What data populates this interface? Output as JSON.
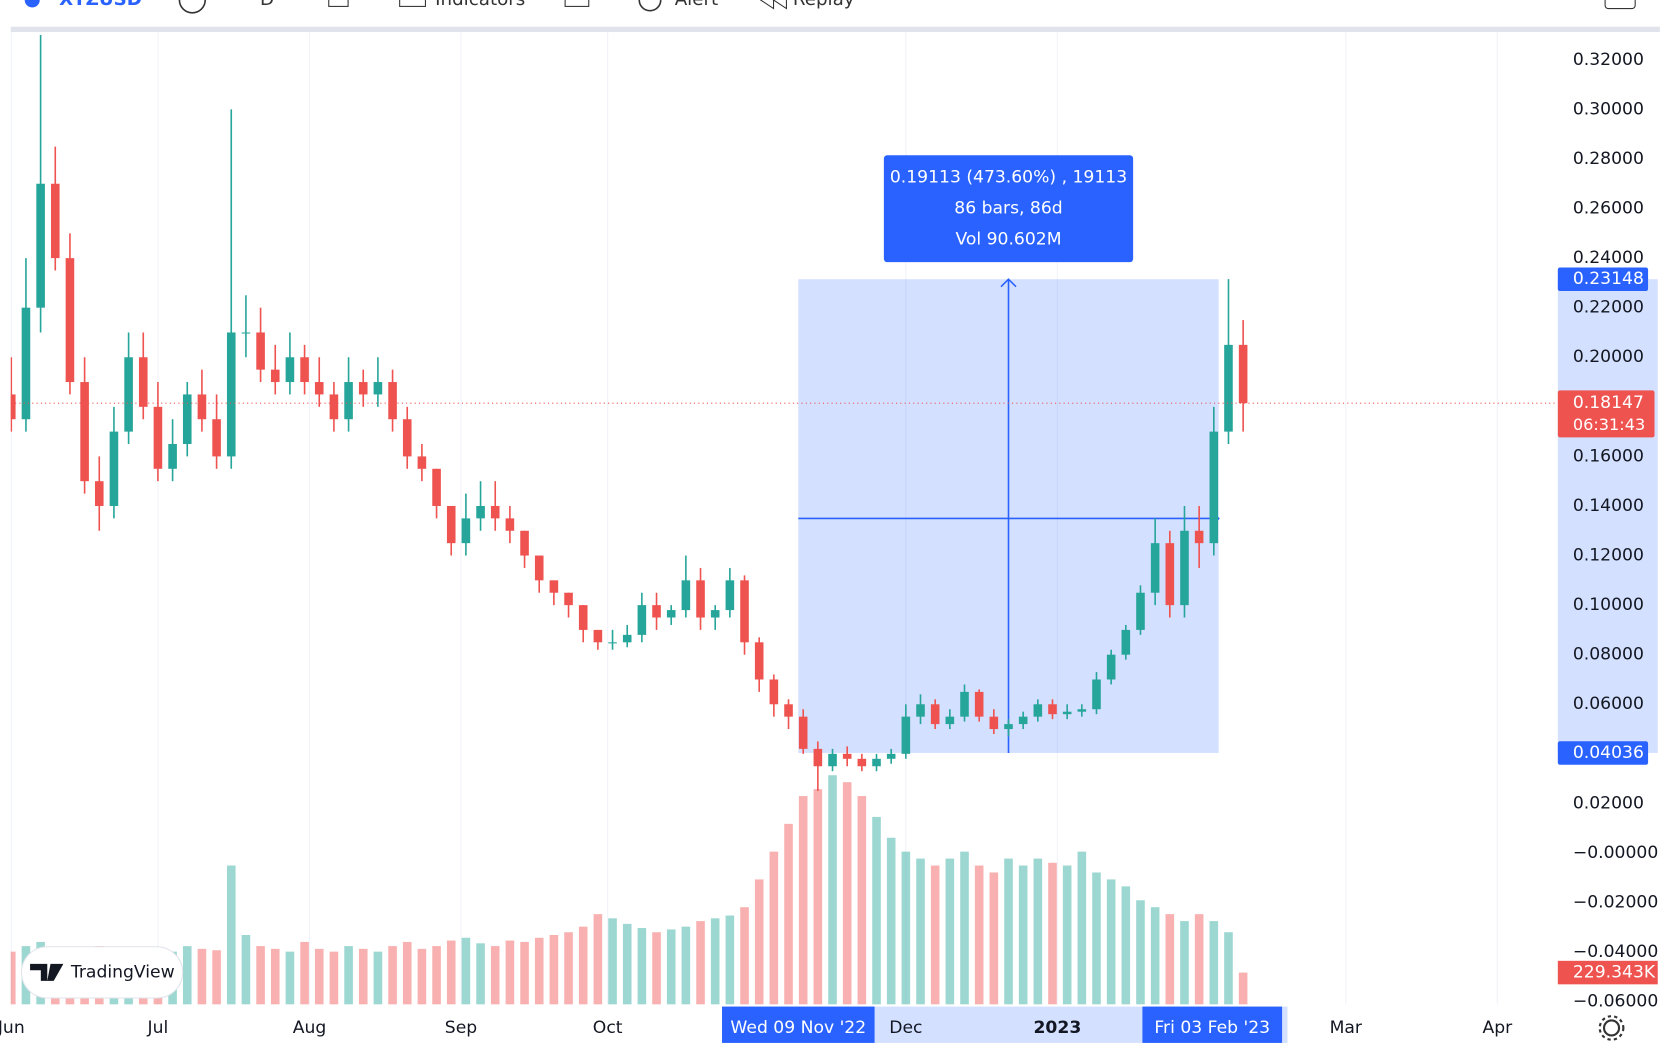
{
  "toolbar": {
    "symbol": "XTZUSD",
    "interval": "D",
    "indicators": "Indicators",
    "alert": "Alert",
    "replay": "Replay"
  },
  "branding": "TradingView",
  "chart_data": {
    "type": "candlestick",
    "x": [
      "2022-06-01",
      "2022-06-04",
      "2022-06-07",
      "2022-06-10",
      "2022-06-13",
      "2022-06-16",
      "2022-06-19",
      "2022-06-22",
      "2022-06-25",
      "2022-06-28",
      "2022-07-01",
      "2022-07-04",
      "2022-07-07",
      "2022-07-10",
      "2022-07-13",
      "2022-07-16",
      "2022-07-19",
      "2022-07-22",
      "2022-07-25",
      "2022-07-28",
      "2022-07-31",
      "2022-08-03",
      "2022-08-06",
      "2022-08-09",
      "2022-08-12",
      "2022-08-15",
      "2022-08-18",
      "2022-08-21",
      "2022-08-24",
      "2022-08-27",
      "2022-08-30",
      "2022-09-02",
      "2022-09-05",
      "2022-09-08",
      "2022-09-11",
      "2022-09-14",
      "2022-09-17",
      "2022-09-20",
      "2022-09-23",
      "2022-09-26",
      "2022-09-29",
      "2022-10-02",
      "2022-10-05",
      "2022-10-08",
      "2022-10-11",
      "2022-10-14",
      "2022-10-17",
      "2022-10-20",
      "2022-10-23",
      "2022-10-26",
      "2022-10-29",
      "2022-11-01",
      "2022-11-04",
      "2022-11-07",
      "2022-11-10",
      "2022-11-13",
      "2022-11-16",
      "2022-11-19",
      "2022-11-22",
      "2022-11-25",
      "2022-11-28",
      "2022-12-01",
      "2022-12-04",
      "2022-12-07",
      "2022-12-10",
      "2022-12-13",
      "2022-12-16",
      "2022-12-19",
      "2022-12-22",
      "2022-12-25",
      "2022-12-28",
      "2022-12-31",
      "2023-01-03",
      "2023-01-06",
      "2023-01-09",
      "2023-01-12",
      "2023-01-15",
      "2023-01-18",
      "2023-01-21",
      "2023-01-24",
      "2023-01-27",
      "2023-01-30",
      "2023-02-02",
      "2023-02-05",
      "2023-02-08"
    ],
    "open": [
      0.185,
      0.175,
      0.22,
      0.27,
      0.24,
      0.19,
      0.15,
      0.14,
      0.17,
      0.2,
      0.18,
      0.155,
      0.165,
      0.185,
      0.175,
      0.16,
      0.21,
      0.21,
      0.195,
      0.19,
      0.2,
      0.19,
      0.185,
      0.175,
      0.19,
      0.185,
      0.19,
      0.175,
      0.16,
      0.155,
      0.14,
      0.125,
      0.135,
      0.14,
      0.135,
      0.13,
      0.12,
      0.11,
      0.105,
      0.1,
      0.09,
      0.085,
      0.085,
      0.088,
      0.1,
      0.095,
      0.098,
      0.11,
      0.095,
      0.098,
      0.11,
      0.085,
      0.07,
      0.06,
      0.055,
      0.042,
      0.035,
      0.04,
      0.038,
      0.035,
      0.038,
      0.04,
      0.055,
      0.06,
      0.052,
      0.055,
      0.065,
      0.055,
      0.05,
      0.052,
      0.055,
      0.06,
      0.056,
      0.057,
      0.058,
      0.07,
      0.08,
      0.09,
      0.105,
      0.125,
      0.1,
      0.13,
      0.125,
      0.17,
      0.205
    ],
    "high": [
      0.2,
      0.24,
      0.33,
      0.285,
      0.25,
      0.2,
      0.16,
      0.18,
      0.21,
      0.21,
      0.19,
      0.175,
      0.19,
      0.195,
      0.185,
      0.3,
      0.225,
      0.22,
      0.205,
      0.21,
      0.205,
      0.2,
      0.19,
      0.2,
      0.195,
      0.2,
      0.195,
      0.18,
      0.165,
      0.155,
      0.14,
      0.145,
      0.15,
      0.15,
      0.14,
      0.13,
      0.12,
      0.11,
      0.105,
      0.1,
      0.09,
      0.09,
      0.092,
      0.105,
      0.105,
      0.1,
      0.12,
      0.115,
      0.1,
      0.115,
      0.112,
      0.087,
      0.072,
      0.062,
      0.058,
      0.045,
      0.042,
      0.043,
      0.04,
      0.04,
      0.042,
      0.06,
      0.064,
      0.062,
      0.058,
      0.068,
      0.066,
      0.058,
      0.054,
      0.057,
      0.062,
      0.062,
      0.06,
      0.06,
      0.073,
      0.082,
      0.092,
      0.108,
      0.135,
      0.13,
      0.14,
      0.14,
      0.18,
      0.2315,
      0.215
    ],
    "low": [
      0.17,
      0.17,
      0.21,
      0.235,
      0.185,
      0.145,
      0.13,
      0.135,
      0.165,
      0.175,
      0.15,
      0.15,
      0.16,
      0.17,
      0.155,
      0.155,
      0.2,
      0.19,
      0.185,
      0.185,
      0.185,
      0.18,
      0.17,
      0.17,
      0.18,
      0.18,
      0.17,
      0.155,
      0.15,
      0.135,
      0.12,
      0.12,
      0.13,
      0.13,
      0.125,
      0.115,
      0.105,
      0.1,
      0.095,
      0.085,
      0.082,
      0.082,
      0.083,
      0.085,
      0.09,
      0.092,
      0.095,
      0.09,
      0.09,
      0.095,
      0.08,
      0.065,
      0.055,
      0.05,
      0.04,
      0.025,
      0.033,
      0.035,
      0.033,
      0.033,
      0.036,
      0.038,
      0.052,
      0.05,
      0.05,
      0.053,
      0.053,
      0.048,
      0.047,
      0.05,
      0.053,
      0.054,
      0.054,
      0.055,
      0.056,
      0.068,
      0.078,
      0.088,
      0.1,
      0.095,
      0.095,
      0.115,
      0.12,
      0.165,
      0.17
    ],
    "close": [
      0.175,
      0.22,
      0.27,
      0.24,
      0.19,
      0.15,
      0.14,
      0.17,
      0.2,
      0.18,
      0.155,
      0.165,
      0.185,
      0.175,
      0.16,
      0.21,
      0.21,
      0.195,
      0.19,
      0.2,
      0.19,
      0.185,
      0.175,
      0.19,
      0.185,
      0.19,
      0.175,
      0.16,
      0.155,
      0.14,
      0.125,
      0.135,
      0.14,
      0.135,
      0.13,
      0.12,
      0.11,
      0.105,
      0.1,
      0.09,
      0.085,
      0.085,
      0.088,
      0.1,
      0.095,
      0.098,
      0.11,
      0.095,
      0.098,
      0.11,
      0.085,
      0.07,
      0.06,
      0.055,
      0.042,
      0.035,
      0.04,
      0.038,
      0.035,
      0.038,
      0.04,
      0.055,
      0.06,
      0.052,
      0.055,
      0.065,
      0.055,
      0.05,
      0.052,
      0.055,
      0.06,
      0.056,
      0.057,
      0.058,
      0.07,
      0.08,
      0.09,
      0.105,
      0.125,
      0.1,
      0.13,
      0.125,
      0.17,
      0.205,
      0.18147
    ],
    "volume": [
      380000,
      420000,
      450000,
      400000,
      380000,
      390000,
      420000,
      400000,
      380000,
      400000,
      390000,
      380000,
      420000,
      400000,
      390000,
      1000000,
      500000,
      420000,
      400000,
      380000,
      450000,
      400000,
      380000,
      420000,
      400000,
      380000,
      420000,
      450000,
      400000,
      420000,
      460000,
      480000,
      440000,
      420000,
      460000,
      450000,
      480000,
      500000,
      520000,
      560000,
      650000,
      620000,
      580000,
      550000,
      520000,
      540000,
      560000,
      600000,
      620000,
      640000,
      700000,
      900000,
      1100000,
      1300000,
      1500000,
      1550000,
      1650000,
      1600000,
      1500000,
      1350000,
      1200000,
      1100000,
      1050000,
      1000000,
      1050000,
      1100000,
      1000000,
      950000,
      1050000,
      1000000,
      1050000,
      1020000,
      1000000,
      1100000,
      950000,
      900000,
      850000,
      750000,
      700000,
      650000,
      600000,
      650000,
      600000,
      520000,
      229343
    ],
    "volume_labels": {
      "84": "229.343K"
    },
    "vlim": [
      0,
      2000000
    ],
    "up_color": "#26a69a",
    "down_color": "#ef5350",
    "ylim": [
      -0.0611,
      0.3312
    ],
    "yticks": [
      {
        "value": 0.32,
        "label": "0.32000"
      },
      {
        "value": 0.3,
        "label": "0.30000"
      },
      {
        "value": 0.28,
        "label": "0.28000"
      },
      {
        "value": 0.26,
        "label": "0.26000"
      },
      {
        "value": 0.24,
        "label": "0.24000"
      },
      {
        "value": 0.22,
        "label": "0.22000"
      },
      {
        "value": 0.2,
        "label": "0.20000"
      },
      {
        "value": 0.18,
        "label": "0.18000"
      },
      {
        "value": 0.16,
        "label": "0.16000"
      },
      {
        "value": 0.14,
        "label": "0.14000"
      },
      {
        "value": 0.12,
        "label": "0.12000"
      },
      {
        "value": 0.1,
        "label": "0.10000"
      },
      {
        "value": 0.08,
        "label": "0.08000"
      },
      {
        "value": 0.06,
        "label": "0.06000"
      },
      {
        "value": 0.04,
        "label": "0.04000"
      },
      {
        "value": 0.02,
        "label": "0.02000"
      },
      {
        "value": 0,
        "label": "−0.00000"
      },
      {
        "value": -0.02,
        "label": "−0.02000"
      },
      {
        "value": -0.04,
        "label": "−0.04000"
      },
      {
        "value": -0.06,
        "label": "−0.06000"
      }
    ],
    "xticks": [
      {
        "value": "2022-06-01",
        "label": "Jun"
      },
      {
        "value": "2022-07-01",
        "label": "Jul"
      },
      {
        "value": "2022-08-01",
        "label": "Aug"
      },
      {
        "value": "2022-09-01",
        "label": "Sep"
      },
      {
        "value": "2022-10-01",
        "label": "Oct"
      },
      {
        "value": "2022-12-01",
        "label": "Dec"
      },
      {
        "value": "2023-01-01",
        "label": "2023"
      },
      {
        "value": "2023-03-01",
        "label": "Mar"
      },
      {
        "value": "2023-04-01",
        "label": "Apr"
      }
    ],
    "grid": true,
    "current_price": {
      "value": 0.18147,
      "label": "0.18147",
      "countdown": "06:31:43"
    },
    "measure": {
      "from_date": "2022-11-09",
      "to_date": "2023-02-03",
      "from_label": "Wed 09 Nov '22",
      "to_label": "Fri 03 Feb '23",
      "low": {
        "value": 0.04036,
        "label": "0.04036"
      },
      "high": {
        "value": 0.23148,
        "label": "0.23148"
      },
      "lines": [
        "0.19113 (473.60%) , 19113",
        "86 bars, 86d",
        "Vol 90.602M"
      ]
    }
  }
}
